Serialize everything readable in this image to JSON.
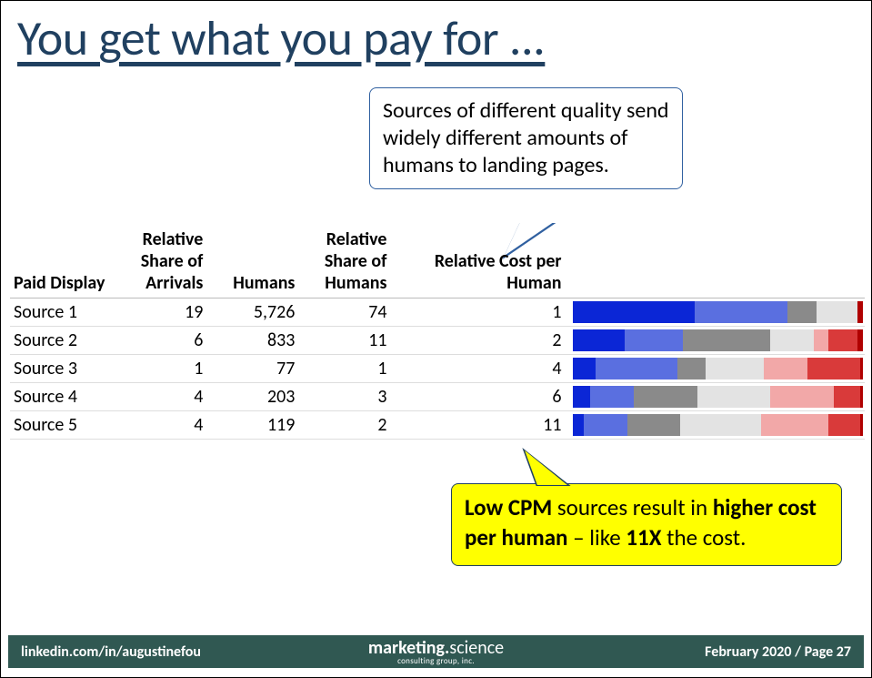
{
  "title": "You get what you pay for ...",
  "callout_top": "Sources of different quality send widely different amounts of humans to landing pages.",
  "callout_bottom_html_parts": {
    "p1": "Low CPM",
    "p2": " sources result in ",
    "p3": "higher cost per human",
    "p4": " – like ",
    "p5": "11X",
    "p6": " the cost."
  },
  "table": {
    "headers": {
      "source": "Paid Display",
      "arrivals": "Relative Share of Arrivals",
      "humans": "Humans",
      "share_humans": "Relative Share of Humans",
      "cost": "Relative Cost per Human"
    },
    "rows": [
      {
        "source": "Source 1",
        "arrivals": "19",
        "humans": "5,726",
        "share_humans": "74",
        "cost": "1"
      },
      {
        "source": "Source 2",
        "arrivals": "6",
        "humans": "833",
        "share_humans": "11",
        "cost": "2"
      },
      {
        "source": "Source 3",
        "arrivals": "1",
        "humans": "77",
        "share_humans": "1",
        "cost": "4"
      },
      {
        "source": "Source 4",
        "arrivals": "4",
        "humans": "203",
        "share_humans": "3",
        "cost": "6"
      },
      {
        "source": "Source 5",
        "arrivals": "4",
        "humans": "119",
        "share_humans": "2",
        "cost": "11"
      }
    ]
  },
  "chart": {
    "segment_order": [
      "darkblue",
      "blue",
      "gray",
      "lightgray",
      "lightred",
      "red",
      "darkred"
    ],
    "colors": {
      "darkblue": "#0b26d6",
      "blue": "#5a6fe0",
      "gray": "#8a8a8a",
      "lightgray": "#e3e3e3",
      "lightred": "#f2a8a8",
      "red": "#d93a3a",
      "darkred": "#b00000"
    },
    "rows": [
      {
        "darkblue": 42,
        "blue": 32,
        "gray": 10,
        "lightgray": 14,
        "lightred": 0,
        "red": 0,
        "darkred": 2
      },
      {
        "darkblue": 18,
        "blue": 20,
        "gray": 30,
        "lightgray": 15,
        "lightred": 5,
        "red": 10,
        "darkred": 2
      },
      {
        "darkblue": 8,
        "blue": 28,
        "gray": 10,
        "lightgray": 20,
        "lightred": 15,
        "red": 18,
        "darkred": 1
      },
      {
        "darkblue": 6,
        "blue": 15,
        "gray": 22,
        "lightgray": 25,
        "lightred": 22,
        "red": 9,
        "darkred": 1
      },
      {
        "darkblue": 4,
        "blue": 15,
        "gray": 18,
        "lightgray": 28,
        "lightred": 23,
        "red": 11,
        "darkred": 1
      }
    ]
  },
  "footer": {
    "left": "linkedin.com/in/augustinefou",
    "center_main1": "marketing.",
    "center_main2": "science",
    "center_sub": "consulting group, inc.",
    "right": "February 2020 / Page 27",
    "background_color": "#305852"
  }
}
